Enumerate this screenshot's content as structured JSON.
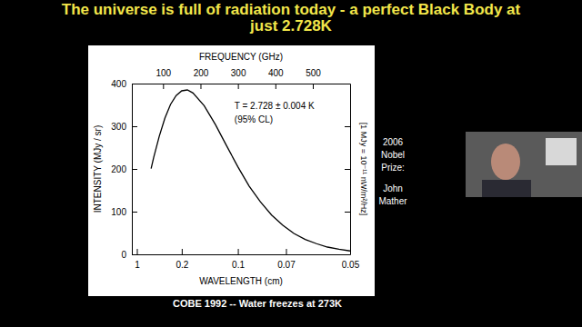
{
  "chart_data": {
    "type": "line",
    "title": "The universe is full of radiation today - a perfect Black Body at just 2.728K",
    "x_label": "WAVELENGTH (cm)",
    "x2_label": "FREQUENCY (GHz)",
    "y_label": "INTENSITY (MJy / sr)",
    "y2_label": "[1 MJy = 10⁻¹¹ nW/m²/Hz]",
    "x": [
      0.4405,
      0.4,
      0.3333,
      0.2857,
      0.25,
      0.2222,
      0.2,
      0.1818,
      0.1667,
      0.1429,
      0.125,
      0.1111,
      0.1,
      0.0909,
      0.0833,
      0.0769,
      0.0714,
      0.0667,
      0.0625,
      0.0588,
      0.0556,
      0.0526,
      0.05
    ],
    "series": [
      {
        "color": "#000000",
        "values": [
          201,
          227,
          277,
          319,
          351,
          372,
          383,
          385,
          378,
          348,
          304,
          254,
          205,
          160,
          123,
          92,
          68,
          49,
          35,
          25,
          17,
          12,
          8
        ]
      }
    ],
    "xlim": [
      1.8,
      0.05
    ],
    "xticks": [
      1,
      0.2,
      0.1,
      0.07,
      0.05
    ],
    "x2lim": [
      16.66,
      599.6
    ],
    "x2ticks": [
      100,
      200,
      300,
      400,
      500
    ],
    "ylim": [
      0,
      400
    ],
    "yticks": [
      0,
      100,
      200,
      300,
      400
    ],
    "grid": false,
    "annotations": [
      "T = 2.728 ± 0.004 K",
      "(95% CL)"
    ]
  },
  "slide": {
    "caption": "COBE 1992 -- Water freezes at 273K",
    "side_note": [
      "2006",
      "Nobel",
      "Prize:",
      "John",
      "Mather"
    ]
  }
}
